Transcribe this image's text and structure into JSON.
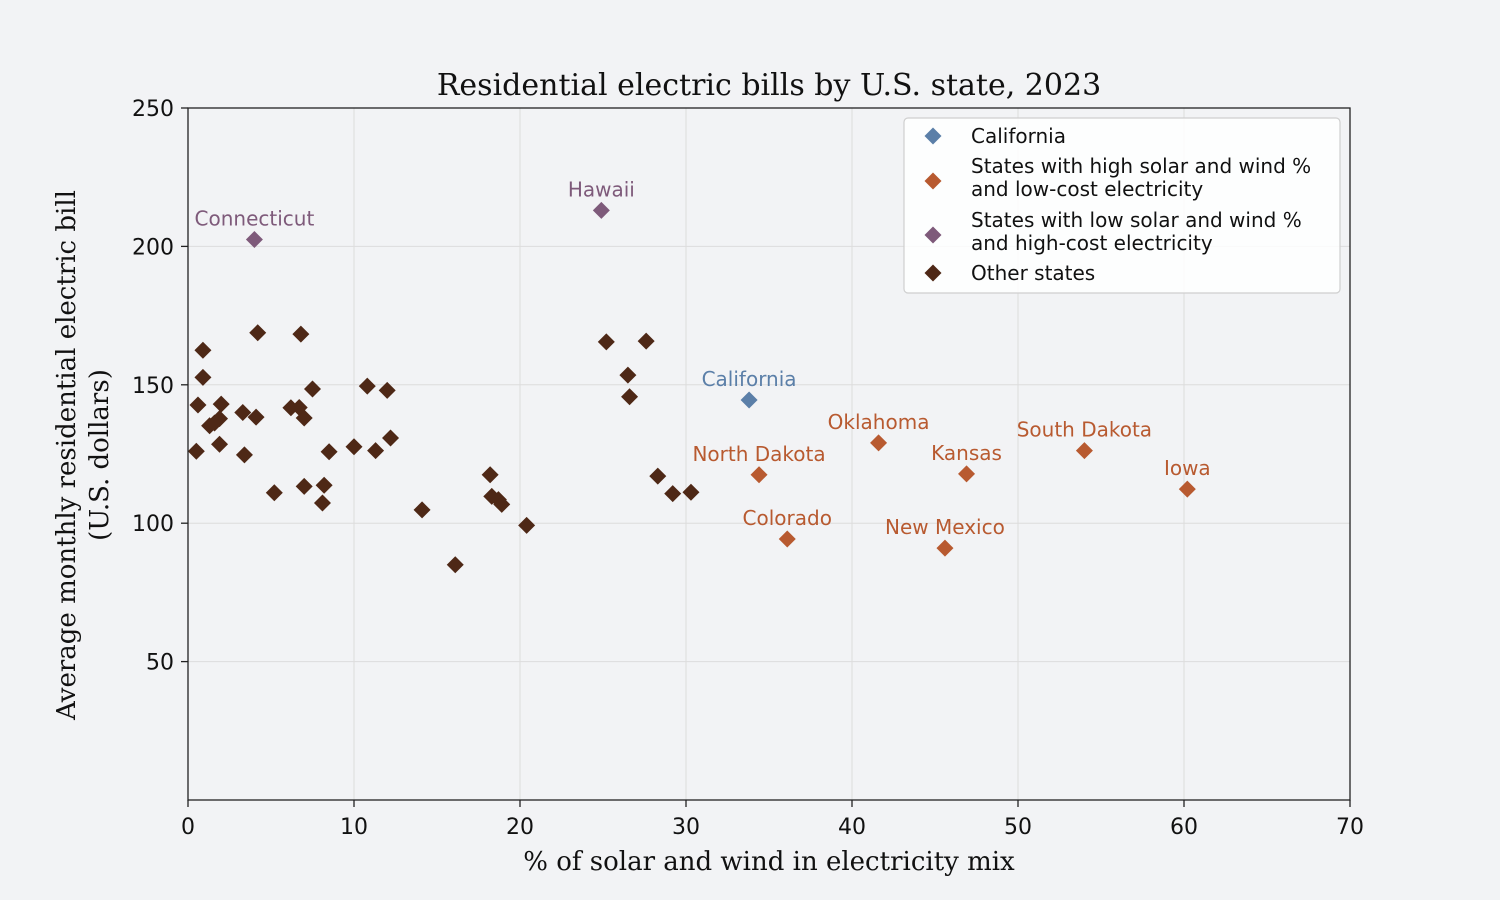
{
  "chart_data": {
    "type": "scatter",
    "title": "Residential electric bills by U.S. state, 2023",
    "xlabel": "% of solar and wind in electricity mix",
    "ylabel_lines": [
      "Average monthly residential electric bill",
      "(U.S. dollars)"
    ],
    "xlim": [
      0,
      70
    ],
    "ylim": [
      0,
      250
    ],
    "xticks": [
      0,
      10,
      20,
      30,
      40,
      50,
      60,
      70
    ],
    "yticks": [
      50,
      100,
      150,
      200,
      250
    ],
    "grid": true,
    "legend_position": "top-right",
    "colors": {
      "california": "#5b7fa8",
      "high_solar": "#b85a30",
      "high_cost": "#7e5a7a",
      "other": "#4e2816"
    },
    "series": [
      {
        "key": "california",
        "name": "California",
        "color": "#5b7fa8",
        "points": [
          {
            "x": 33.8,
            "y": 144.5,
            "label": "California"
          }
        ]
      },
      {
        "key": "high_solar",
        "name_lines": [
          "States with high solar and wind %",
          "and low-cost electricity"
        ],
        "color": "#b85a30",
        "points": [
          {
            "x": 34.4,
            "y": 117.5,
            "label": "North Dakota"
          },
          {
            "x": 36.1,
            "y": 94.3,
            "label": "Colorado"
          },
          {
            "x": 41.6,
            "y": 129.0,
            "label": "Oklahoma"
          },
          {
            "x": 45.6,
            "y": 91.0,
            "label": "New Mexico"
          },
          {
            "x": 46.9,
            "y": 117.8,
            "label": "Kansas"
          },
          {
            "x": 54.0,
            "y": 126.2,
            "label": "South Dakota"
          },
          {
            "x": 60.2,
            "y": 112.3,
            "label": "Iowa"
          }
        ]
      },
      {
        "key": "high_cost",
        "name_lines": [
          "States with low solar and wind %",
          "and high-cost electricity"
        ],
        "color": "#7e5a7a",
        "points": [
          {
            "x": 4.0,
            "y": 202.5,
            "label": "Connecticut"
          },
          {
            "x": 24.9,
            "y": 213.0,
            "label": "Hawaii"
          }
        ]
      },
      {
        "key": "other",
        "name": "Other states",
        "color": "#4e2816",
        "points": [
          {
            "x": 0.5,
            "y": 126
          },
          {
            "x": 0.6,
            "y": 142.7
          },
          {
            "x": 0.9,
            "y": 152.7
          },
          {
            "x": 0.9,
            "y": 162.5
          },
          {
            "x": 1.3,
            "y": 135.2
          },
          {
            "x": 1.6,
            "y": 136.2
          },
          {
            "x": 1.9,
            "y": 128.5
          },
          {
            "x": 1.9,
            "y": 137.8
          },
          {
            "x": 2.0,
            "y": 143.0
          },
          {
            "x": 3.3,
            "y": 140.0
          },
          {
            "x": 3.4,
            "y": 124.7
          },
          {
            "x": 4.1,
            "y": 138.3
          },
          {
            "x": 4.2,
            "y": 168.8
          },
          {
            "x": 5.2,
            "y": 111.0
          },
          {
            "x": 6.2,
            "y": 141.7
          },
          {
            "x": 6.7,
            "y": 141.8
          },
          {
            "x": 6.8,
            "y": 168.3
          },
          {
            "x": 7.0,
            "y": 138.0
          },
          {
            "x": 7.0,
            "y": 113.3
          },
          {
            "x": 7.5,
            "y": 148.5
          },
          {
            "x": 8.1,
            "y": 107.3
          },
          {
            "x": 8.2,
            "y": 113.7
          },
          {
            "x": 8.5,
            "y": 125.8
          },
          {
            "x": 10.0,
            "y": 127.6
          },
          {
            "x": 10.8,
            "y": 149.5
          },
          {
            "x": 11.3,
            "y": 126.2
          },
          {
            "x": 12.0,
            "y": 148.0
          },
          {
            "x": 12.2,
            "y": 130.8
          },
          {
            "x": 14.1,
            "y": 104.8
          },
          {
            "x": 16.1,
            "y": 85.0
          },
          {
            "x": 18.2,
            "y": 117.5
          },
          {
            "x": 18.3,
            "y": 109.7
          },
          {
            "x": 18.7,
            "y": 108.5
          },
          {
            "x": 18.9,
            "y": 106.8
          },
          {
            "x": 20.4,
            "y": 99.2
          },
          {
            "x": 25.2,
            "y": 165.5
          },
          {
            "x": 26.5,
            "y": 153.5
          },
          {
            "x": 26.6,
            "y": 145.7
          },
          {
            "x": 27.6,
            "y": 165.8
          },
          {
            "x": 28.3,
            "y": 117.0
          },
          {
            "x": 29.2,
            "y": 110.7
          },
          {
            "x": 30.3,
            "y": 111.2
          }
        ]
      }
    ]
  }
}
